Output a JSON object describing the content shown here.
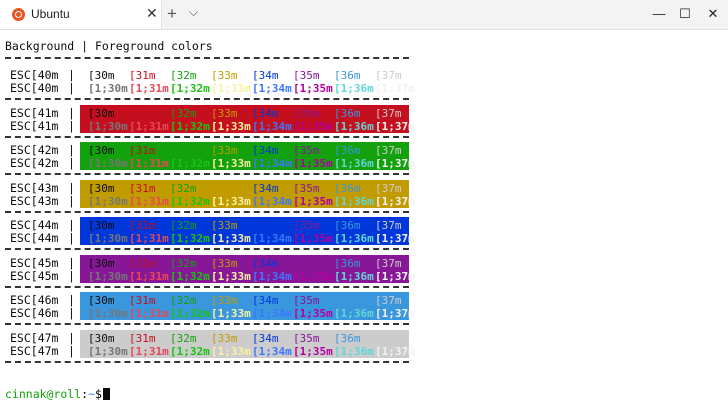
{
  "window": {
    "tab_title": "Ubuntu",
    "close_tab": "✕",
    "new_tab": "+",
    "dropdown": "⌵",
    "minimize": "—",
    "maximize": "☐",
    "close": "✕"
  },
  "header": "Background | Foreground colors",
  "rows": [
    {
      "bg_codes": [
        "ESC[40m",
        "ESC[40m"
      ],
      "bg": ""
    },
    {
      "bg_codes": [
        "ESC[41m",
        "ESC[41m"
      ],
      "bg": "#c50f1f"
    },
    {
      "bg_codes": [
        "ESC[42m",
        "ESC[42m"
      ],
      "bg": "#13a10e"
    },
    {
      "bg_codes": [
        "ESC[43m",
        "ESC[43m"
      ],
      "bg": "#c19c00"
    },
    {
      "bg_codes": [
        "ESC[44m",
        "ESC[44m"
      ],
      "bg": "#0037da"
    },
    {
      "bg_codes": [
        "ESC[45m",
        "ESC[45m"
      ],
      "bg": "#881798"
    },
    {
      "bg_codes": [
        "ESC[46m",
        "ESC[46m"
      ],
      "bg": "#3a96dd"
    },
    {
      "bg_codes": [
        "ESC[47m",
        "ESC[47m"
      ],
      "bg": "#cccccc"
    }
  ],
  "fg_normal": [
    "[30m",
    "[31m",
    "[32m",
    "[33m",
    "[34m",
    "[35m",
    "[36m",
    "[37m"
  ],
  "fg_bold": [
    "[1;30m",
    "[1;31m",
    "[1;32m",
    "[1;33m",
    "[1;34m",
    "[1;35m",
    "[1;36m",
    "[1;37m"
  ],
  "fg_colors": [
    "#0c0c0c",
    "#c50f1f",
    "#13a10e",
    "#c19c00",
    "#0037da",
    "#881798",
    "#3a96dd",
    "#cccccc"
  ],
  "fg_bold_colors": [
    "#767676",
    "#e74856",
    "#16c60c",
    "#f9f1a5",
    "#3b78ff",
    "#b4009e",
    "#61d6d6",
    "#f2f2f2"
  ],
  "prompt": {
    "user_host": "cinnak@roll",
    "path": "~",
    "symbol": "$"
  },
  "colors": {
    "prompt_user": "#13a10e",
    "prompt_path": "#3b78ff",
    "text": "#0c0c0c"
  }
}
